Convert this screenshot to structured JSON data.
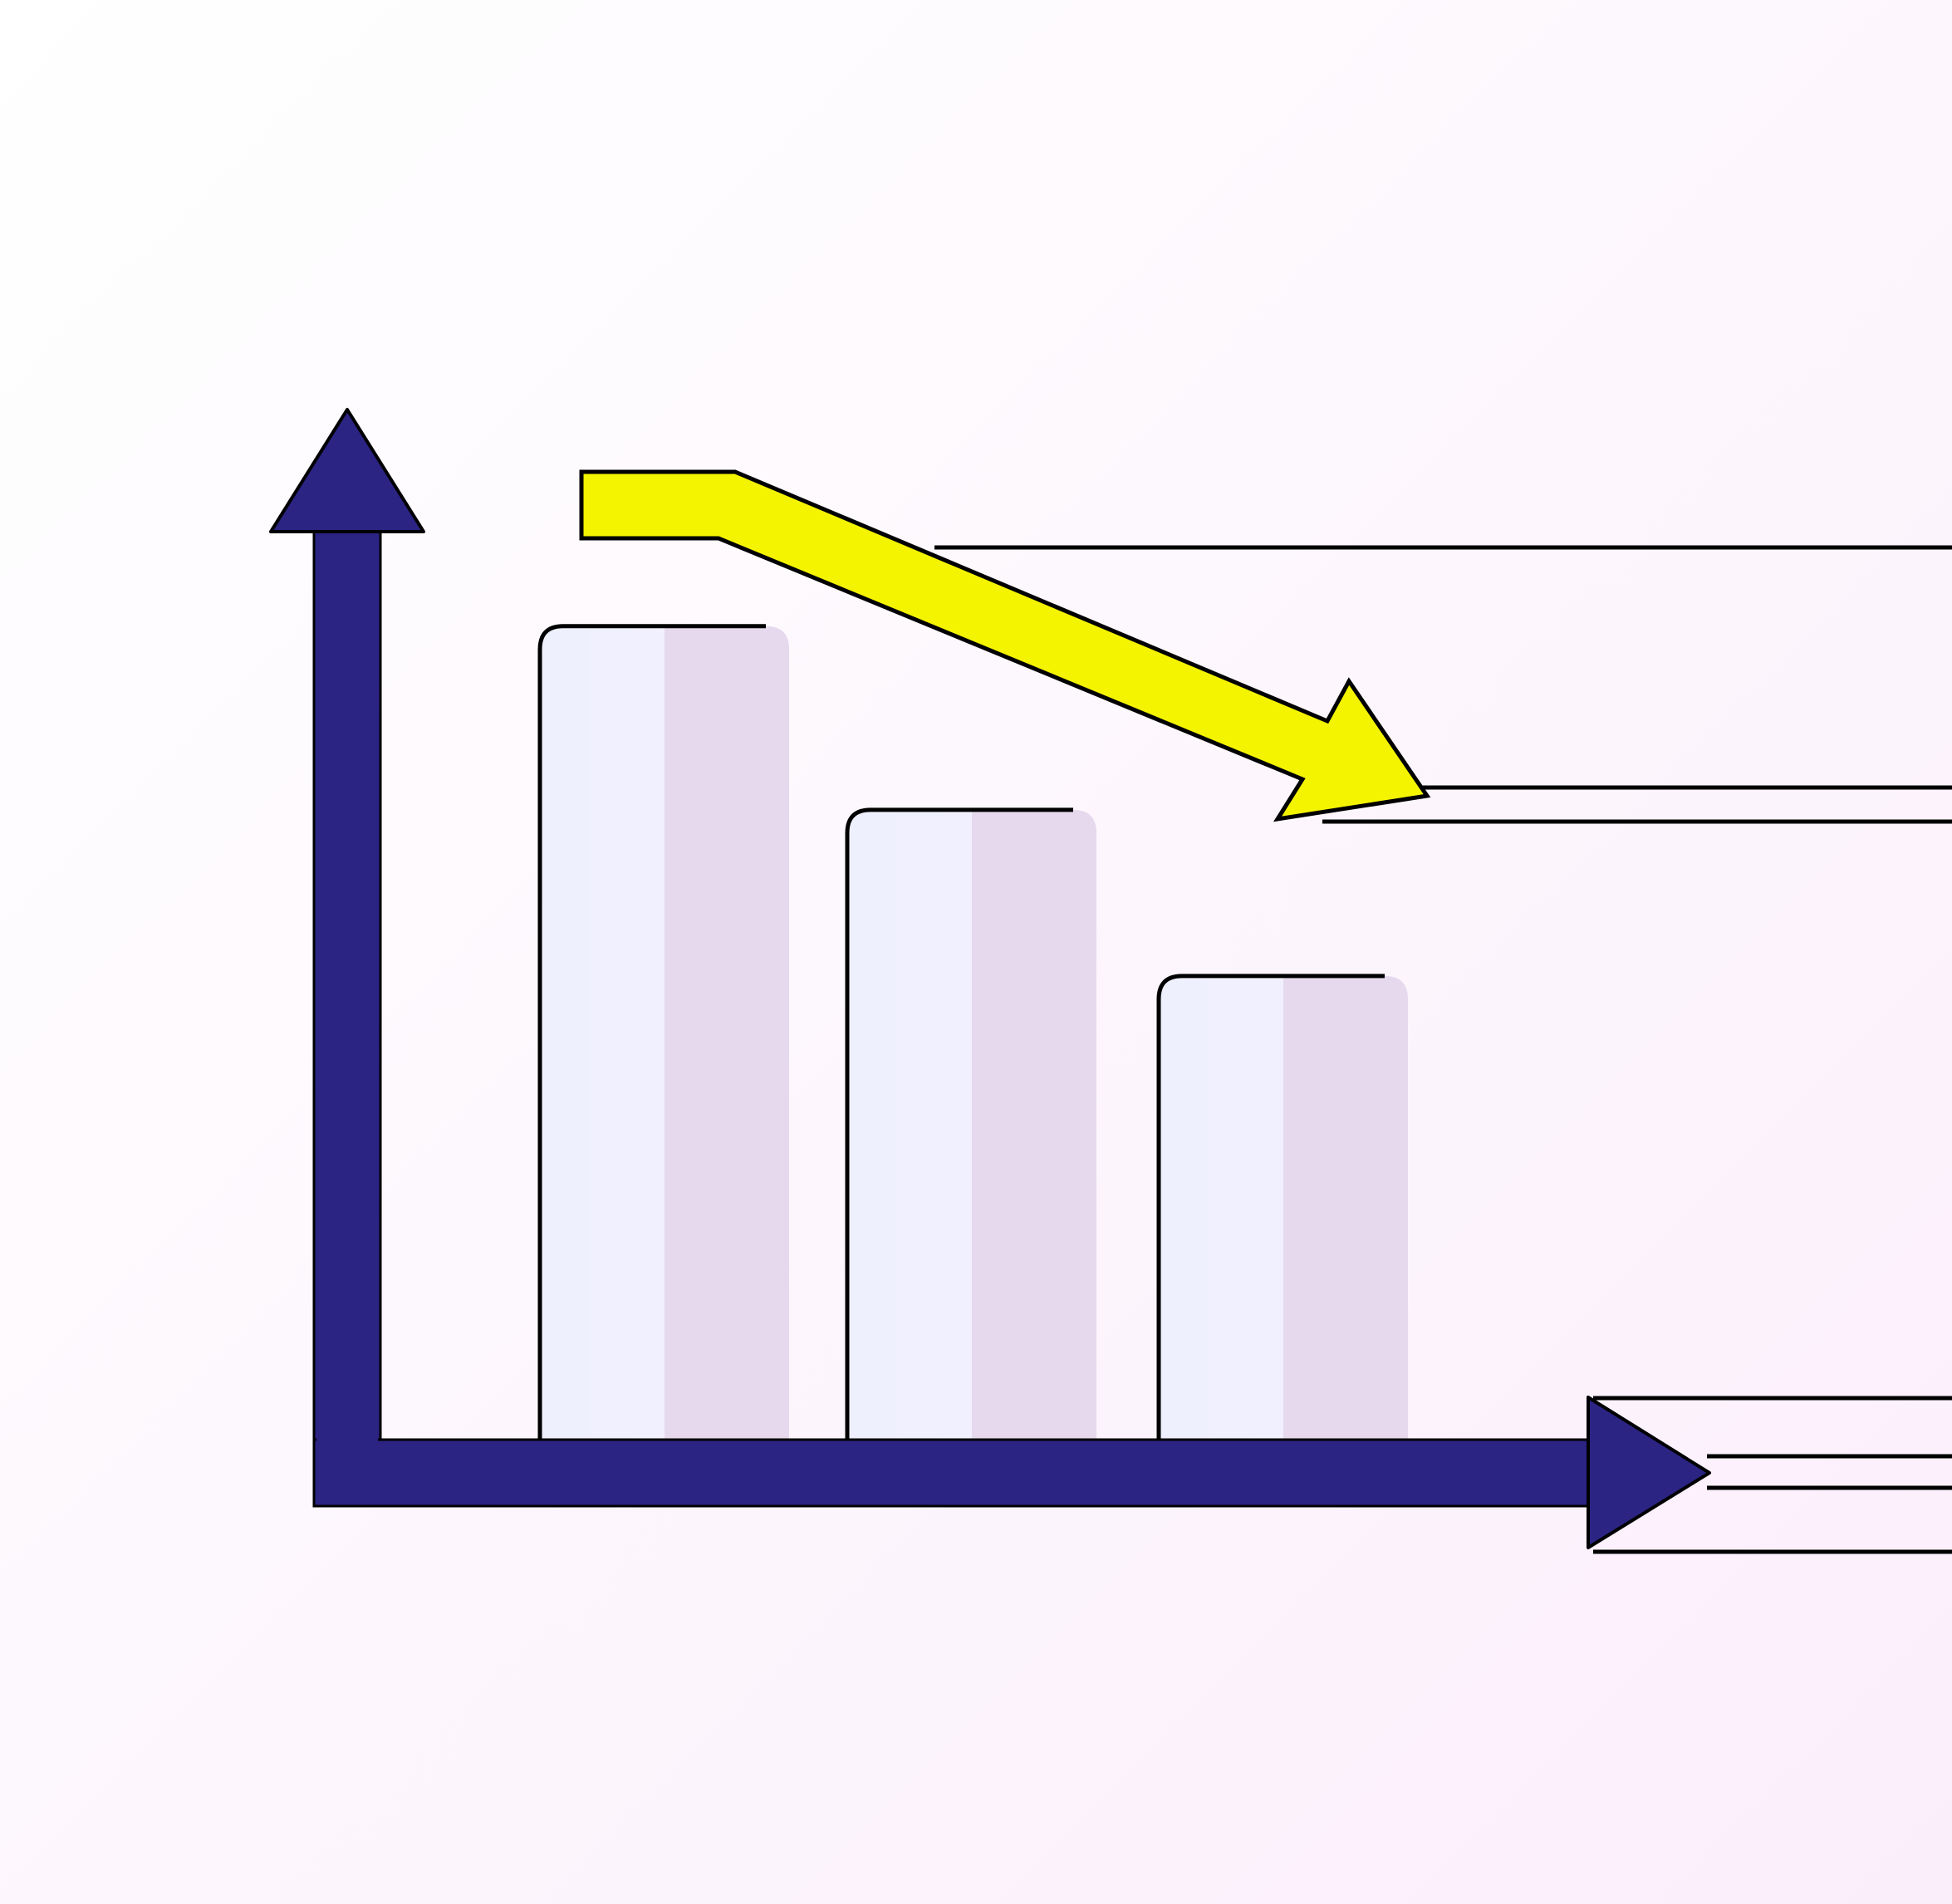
{
  "chart_data": {
    "type": "bar",
    "title": "",
    "xlabel": "",
    "ylabel": "",
    "categories": [
      "",
      "",
      ""
    ],
    "values": [
      93,
      72,
      53
    ],
    "ylim": [
      0,
      100
    ],
    "grid": false,
    "legend": "none",
    "trend_arrow": "downward",
    "colors": {
      "axis": "#2b2483",
      "bar_light": "#f5f0fd",
      "bar_shade": "#e6d9ee",
      "trend_arrow": "#f4f400",
      "outline": "#000000"
    }
  }
}
